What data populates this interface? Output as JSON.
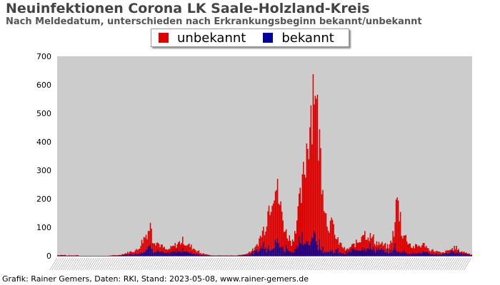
{
  "chart_data": {
    "type": "bar",
    "stacked": true,
    "title": "Neuinfektionen Corona LK Saale-Holzland-Kreis",
    "subtitle": "Nach Meldedatum, unterschieden nach Erkrankungsbeginn bekannt/unbekannt",
    "ylim": [
      0,
      700
    ],
    "yticks": [
      "0",
      "100",
      "200",
      "300",
      "400",
      "500",
      "600",
      "700"
    ],
    "grid": false,
    "legend_position": "top-center",
    "series": [
      {
        "name": "unbekannt",
        "color": "#dd0000"
      },
      {
        "name": "bekannt",
        "color": "#000099"
      }
    ],
    "periods": [
      {
        "days": 8,
        "start": 2,
        "end": 3,
        "known_share": 0.6
      },
      {
        "days": 12,
        "start": 1,
        "end": 2,
        "known_share": 0.3
      },
      {
        "days": 28,
        "start": 0,
        "end": 0,
        "known_share": 0
      },
      {
        "days": 10,
        "start": 1,
        "end": 3,
        "known_share": 0.4
      },
      {
        "days": 16,
        "start": 3,
        "end": 20,
        "known_share": 0.35
      },
      {
        "days": 14,
        "start": 20,
        "end": 110,
        "known_share": 0.3
      },
      {
        "days": 14,
        "start": 60,
        "end": 20,
        "known_share": 0.35
      },
      {
        "days": 16,
        "start": 20,
        "end": 55,
        "known_share": 0.4
      },
      {
        "days": 14,
        "start": 45,
        "end": 15,
        "known_share": 0.35
      },
      {
        "days": 12,
        "start": 10,
        "end": 1,
        "known_share": 0.3
      },
      {
        "days": 22,
        "start": 1,
        "end": 1,
        "known_share": 0.5
      },
      {
        "days": 8,
        "start": 1,
        "end": 5,
        "known_share": 0.4
      },
      {
        "days": 10,
        "start": 5,
        "end": 25,
        "known_share": 0.5
      },
      {
        "days": 10,
        "start": 30,
        "end": 110,
        "known_share": 0.4
      },
      {
        "days": 8,
        "start": 140,
        "end": 255,
        "known_share": 0.15
      },
      {
        "days": 10,
        "start": 255,
        "end": 90,
        "known_share": 0.2
      },
      {
        "days": 6,
        "start": 80,
        "end": 50,
        "known_share": 0.35
      },
      {
        "days": 10,
        "start": 50,
        "end": 230,
        "known_share": 0.25
      },
      {
        "days": 12,
        "start": 270,
        "end": 665,
        "known_share": 0.12
      },
      {
        "days": 10,
        "start": 510,
        "end": 140,
        "known_share": 0.1
      },
      {
        "days": 8,
        "start": 120,
        "end": 95,
        "known_share": 0.15
      },
      {
        "days": 10,
        "start": 60,
        "end": 20,
        "known_share": 0.3
      },
      {
        "days": 14,
        "start": 20,
        "end": 55,
        "known_share": 0.5
      },
      {
        "days": 12,
        "start": 85,
        "end": 60,
        "known_share": 0.4
      },
      {
        "days": 14,
        "start": 50,
        "end": 30,
        "known_share": 0.45
      },
      {
        "days": 6,
        "start": 35,
        "end": 100,
        "known_share": 0.3
      },
      {
        "days": 5,
        "start": 200,
        "end": 140,
        "known_share": 0.1
      },
      {
        "days": 10,
        "start": 85,
        "end": 35,
        "known_share": 0.2
      },
      {
        "days": 14,
        "start": 30,
        "end": 40,
        "known_share": 0.3
      },
      {
        "days": 14,
        "start": 25,
        "end": 10,
        "known_share": 0.35
      },
      {
        "days": 14,
        "start": 10,
        "end": 30,
        "known_share": 0.55
      },
      {
        "days": 14,
        "start": 20,
        "end": 5,
        "known_share": 0.6
      }
    ],
    "footer": "Grafik: Rainer Gemers, Daten: RKI, Stand: 2023-05-08, www.rainer-gemers.de"
  }
}
